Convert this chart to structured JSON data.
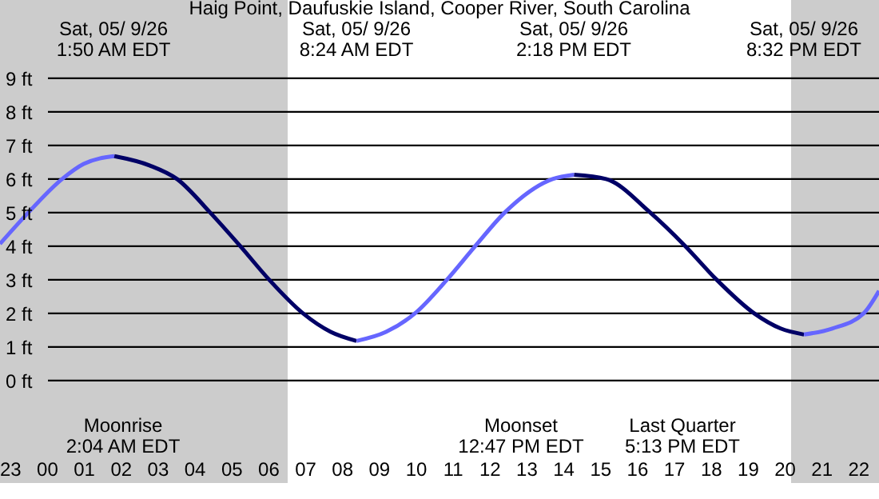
{
  "chart_data": {
    "type": "line",
    "title": "Haig Point, Daufuskie Island, Cooper River, South Carolina",
    "xlim": [
      "--05-08T22:44",
      "--05-09T22:34"
    ],
    "ylim": [
      -3.05,
      11.33
    ],
    "xticks": [
      {
        "value": "--05-08T23:00",
        "label": "23"
      },
      {
        "value": "--05-09T00:00",
        "label": "00"
      },
      {
        "value": "--05-09T01:00",
        "label": "01"
      },
      {
        "value": "--05-09T02:00",
        "label": "02"
      },
      {
        "value": "--05-09T03:00",
        "label": "03"
      },
      {
        "value": "--05-09T04:00",
        "label": "04"
      },
      {
        "value": "--05-09T05:00",
        "label": "05"
      },
      {
        "value": "--05-09T06:00",
        "label": "06"
      },
      {
        "value": "--05-09T07:00",
        "label": "07"
      },
      {
        "value": "--05-09T08:00",
        "label": "08"
      },
      {
        "value": "--05-09T09:00",
        "label": "09"
      },
      {
        "value": "--05-09T10:00",
        "label": "10"
      },
      {
        "value": "--05-09T11:00",
        "label": "11"
      },
      {
        "value": "--05-09T12:00",
        "label": "12"
      },
      {
        "value": "--05-09T13:00",
        "label": "13"
      },
      {
        "value": "--05-09T14:00",
        "label": "14"
      },
      {
        "value": "--05-09T15:00",
        "label": "15"
      },
      {
        "value": "--05-09T16:00",
        "label": "16"
      },
      {
        "value": "--05-09T17:00",
        "label": "17"
      },
      {
        "value": "--05-09T18:00",
        "label": "18"
      },
      {
        "value": "--05-09T19:00",
        "label": "19"
      },
      {
        "value": "--05-09T20:00",
        "label": "20"
      },
      {
        "value": "--05-09T21:00",
        "label": "21"
      },
      {
        "value": "--05-09T22:00",
        "label": "22"
      }
    ],
    "yticks": [
      {
        "value": 0,
        "label": "0 ft"
      },
      {
        "value": 1,
        "label": "1 ft"
      },
      {
        "value": 2,
        "label": "2 ft"
      },
      {
        "value": 3,
        "label": "3 ft"
      },
      {
        "value": 4,
        "label": "4 ft"
      },
      {
        "value": 5,
        "label": "5 ft"
      },
      {
        "value": 6,
        "label": "6 ft"
      },
      {
        "value": 7,
        "label": "7 ft"
      },
      {
        "value": 8,
        "label": "8 ft"
      },
      {
        "value": 9,
        "label": "9 ft"
      }
    ],
    "grid": "y",
    "marker": "none",
    "line_style": "solid",
    "series": [
      {
        "color": "#6666ff",
        "x": [
          "--05-08T22:44",
          "--05-08T23:30",
          "--05-09T00:25",
          "--05-09T01:00",
          "--05-09T01:50"
        ],
        "values": [
          4.07,
          5,
          6,
          6.45,
          6.68
        ]
      },
      {
        "color": "#000066",
        "x": [
          "--05-09T01:50",
          "--05-09T02:48",
          "--05-09T03:32",
          "--05-09T04:26",
          "--05-09T05:15",
          "--05-09T06:02",
          "--05-09T06:57",
          "--05-09T07:42",
          "--05-09T08:24"
        ],
        "values": [
          6.68,
          6.4,
          6,
          5,
          4,
          3,
          2,
          1.45,
          1.18
        ]
      },
      {
        "color": "#6666ff",
        "x": [
          "--05-09T08:24",
          "--05-09T09:12",
          "--05-09T09:59",
          "--05-09T10:51",
          "--05-09T11:37",
          "--05-09T12:25",
          "--05-09T13:43",
          "--05-09T14:18"
        ],
        "values": [
          1.18,
          1.45,
          2,
          3,
          4,
          5,
          6,
          6.13
        ]
      },
      {
        "color": "#000066",
        "x": [
          "--05-09T14:18",
          "--05-09T15:10",
          "--05-09T16:22",
          "--05-09T17:19",
          "--05-09T18:10",
          "--05-09T19:11",
          "--05-09T19:54",
          "--05-09T20:32"
        ],
        "values": [
          6.13,
          6,
          5,
          4,
          3,
          2,
          1.55,
          1.37
        ]
      },
      {
        "color": "#6666ff",
        "x": [
          "--05-09T20:32",
          "--05-09T21:18",
          "--05-09T22:09",
          "--05-09T22:34"
        ],
        "values": [
          1.37,
          1.55,
          2,
          2.67
        ]
      }
    ],
    "bands": [
      {
        "axis": "x",
        "from": "--05-08T22:44",
        "to": "--05-09T06:32",
        "color": "#cccccc"
      },
      {
        "axis": "x",
        "from": "--05-09T20:11",
        "to": "--05-09T22:34",
        "color": "#cccccc"
      }
    ],
    "annotations": [
      "Sat, 05/ 9/26\n1:50 AM EDT",
      "Sat, 05/ 9/26\n8:24 AM EDT",
      "Sat, 05/ 9/26\n2:18 PM EDT",
      "Sat, 05/ 9/26\n8:32 PM EDT",
      "Moonrise\n2:04 AM EDT",
      "Moonset\n12:47 PM EDT",
      "Last Quarter\n5:13 PM EDT"
    ]
  }
}
